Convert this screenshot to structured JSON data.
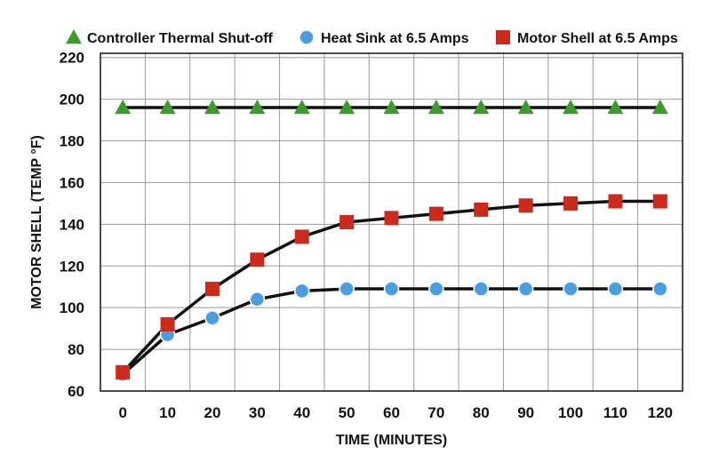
{
  "chart_data": {
    "type": "line",
    "xlabel": "TIME (MINUTES)",
    "ylabel": "MOTOR SHELL (TEMP °F)",
    "x": [
      0,
      10,
      20,
      30,
      40,
      50,
      60,
      70,
      80,
      90,
      100,
      110,
      120
    ],
    "xlim": [
      -5,
      125
    ],
    "ylim": [
      60,
      222
    ],
    "yticks": [
      60,
      80,
      100,
      120,
      140,
      160,
      180,
      200,
      220
    ],
    "grid": true,
    "legend_position": "top",
    "series": [
      {
        "name": "Controller Thermal Shut-off",
        "marker": "triangle",
        "color": "#3e9a2e",
        "values": [
          196,
          196,
          196,
          196,
          196,
          196,
          196,
          196,
          196,
          196,
          196,
          196,
          196
        ]
      },
      {
        "name": "Heat Sink at 6.5 Amps",
        "marker": "circle",
        "color": "#4a9ee0",
        "values": [
          68,
          87,
          95,
          104,
          108,
          109,
          109,
          109,
          109,
          109,
          109,
          109,
          109
        ]
      },
      {
        "name": "Motor Shell at 6.5 Amps",
        "marker": "square",
        "color": "#cc2a1c",
        "values": [
          69,
          92,
          109,
          123,
          134,
          141,
          143,
          145,
          147,
          149,
          150,
          151,
          151
        ]
      }
    ]
  }
}
